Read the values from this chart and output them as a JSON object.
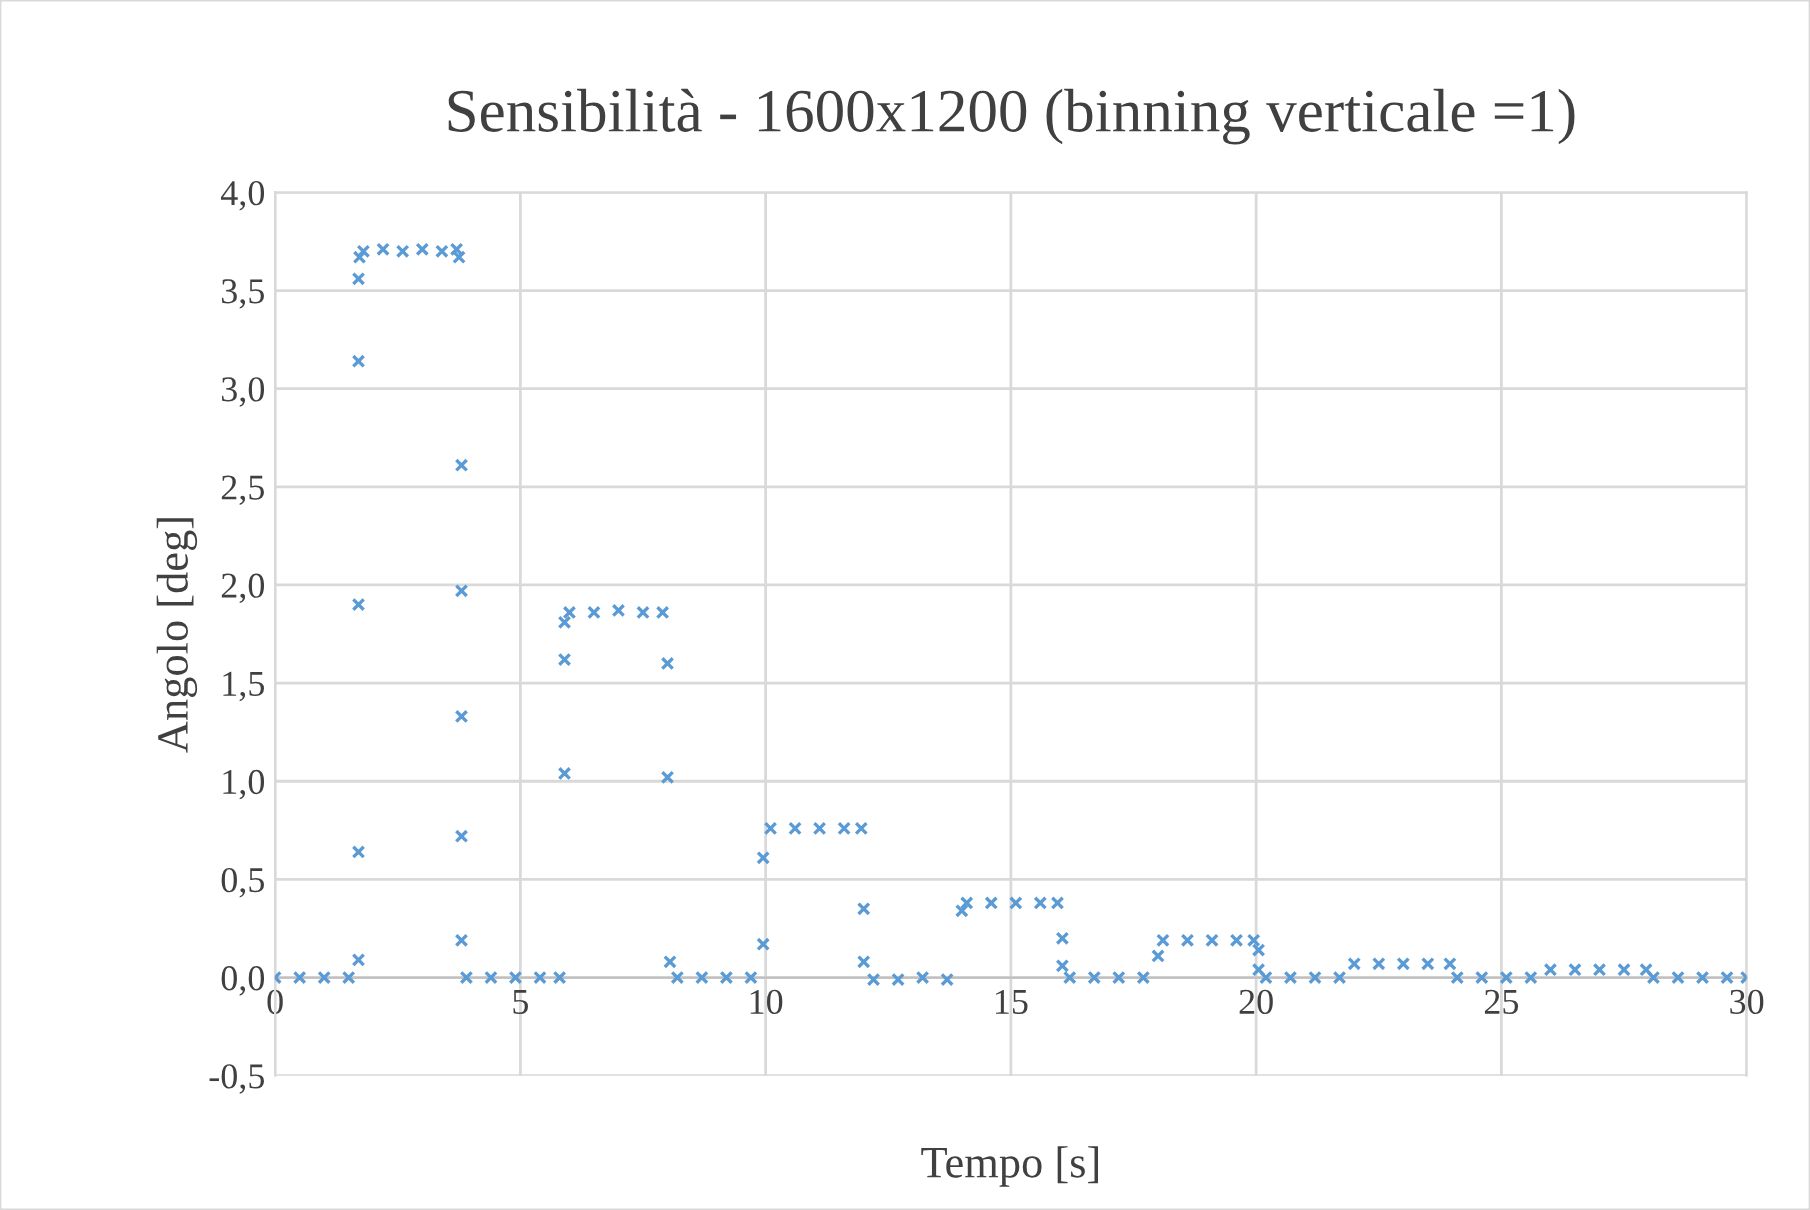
{
  "chart_data": {
    "type": "scatter",
    "title": "Sensibilità - 1600x1200 (binning verticale =1)",
    "xlabel": "Tempo [s]",
    "ylabel": "Angolo [deg]",
    "xlim": [
      0,
      30
    ],
    "xticks": [
      0,
      5,
      10,
      15,
      20,
      25,
      30
    ],
    "ylim": [
      -0.5,
      4.0
    ],
    "yticks": [
      {
        "value": -0.5,
        "label": "-0,5"
      },
      {
        "value": 0.0,
        "label": "0,0"
      },
      {
        "value": 0.5,
        "label": "0,5"
      },
      {
        "value": 1.0,
        "label": "1,0"
      },
      {
        "value": 1.5,
        "label": "1,5"
      },
      {
        "value": 2.0,
        "label": "2,0"
      },
      {
        "value": 2.5,
        "label": "2,5"
      },
      {
        "value": 3.0,
        "label": "3,0"
      },
      {
        "value": 3.5,
        "label": "3,5"
      },
      {
        "value": 4.0,
        "label": "4,0"
      }
    ],
    "grid": true,
    "marker": "cross",
    "legend": false,
    "series": [
      {
        "color": "#5b9bd5",
        "x": [
          0,
          0.5,
          1.0,
          1.5,
          1.7,
          1.7,
          1.7,
          1.7,
          1.7,
          1.72,
          1.8,
          2.2,
          2.6,
          3.0,
          3.4,
          3.7,
          3.75,
          3.8,
          3.8,
          3.8,
          3.8,
          3.8,
          3.9,
          4.4,
          4.9,
          5.4,
          5.8,
          5.9,
          5.9,
          5.9,
          6.0,
          6.5,
          7.0,
          7.5,
          7.9,
          8.0,
          8.0,
          8.05,
          8.2,
          8.7,
          9.2,
          9.7,
          9.95,
          9.95,
          10.1,
          10.6,
          11.1,
          11.6,
          11.95,
          12.0,
          12.0,
          12.2,
          12.7,
          13.2,
          13.7,
          14.0,
          14.1,
          14.6,
          15.1,
          15.6,
          15.95,
          16.05,
          16.05,
          16.2,
          16.7,
          17.2,
          17.7,
          18.0,
          18.1,
          18.6,
          19.1,
          19.6,
          19.95,
          20.05,
          20.05,
          20.2,
          20.7,
          21.2,
          21.7,
          22.0,
          22.5,
          23.0,
          23.5,
          23.95,
          24.1,
          24.6,
          25.1,
          25.6,
          26.0,
          26.5,
          27.0,
          27.5,
          27.95,
          28.1,
          28.6,
          29.1,
          29.6,
          30.0
        ],
        "values": [
          0.0,
          0.0,
          0.0,
          0.0,
          0.09,
          0.64,
          1.9,
          3.14,
          3.56,
          3.67,
          3.7,
          3.71,
          3.7,
          3.71,
          3.7,
          3.71,
          3.67,
          2.61,
          1.97,
          1.33,
          0.72,
          0.19,
          0.0,
          0.0,
          0.0,
          0.0,
          0.0,
          1.04,
          1.62,
          1.81,
          1.86,
          1.86,
          1.87,
          1.86,
          1.86,
          1.6,
          1.02,
          0.08,
          0.0,
          0.0,
          0.0,
          0.0,
          0.17,
          0.61,
          0.76,
          0.76,
          0.76,
          0.76,
          0.76,
          0.35,
          0.08,
          -0.01,
          -0.01,
          0.0,
          -0.01,
          0.34,
          0.38,
          0.38,
          0.38,
          0.38,
          0.38,
          0.2,
          0.06,
          0.0,
          0.0,
          0.0,
          0.0,
          0.11,
          0.19,
          0.19,
          0.19,
          0.19,
          0.19,
          0.14,
          0.04,
          0.0,
          0.0,
          0.0,
          0.0,
          0.07,
          0.07,
          0.07,
          0.07,
          0.07,
          0.0,
          0.0,
          0.0,
          0.0,
          0.04,
          0.04,
          0.04,
          0.04,
          0.04,
          0.0,
          0.0,
          0.0,
          0.0,
          0.0
        ]
      }
    ]
  }
}
